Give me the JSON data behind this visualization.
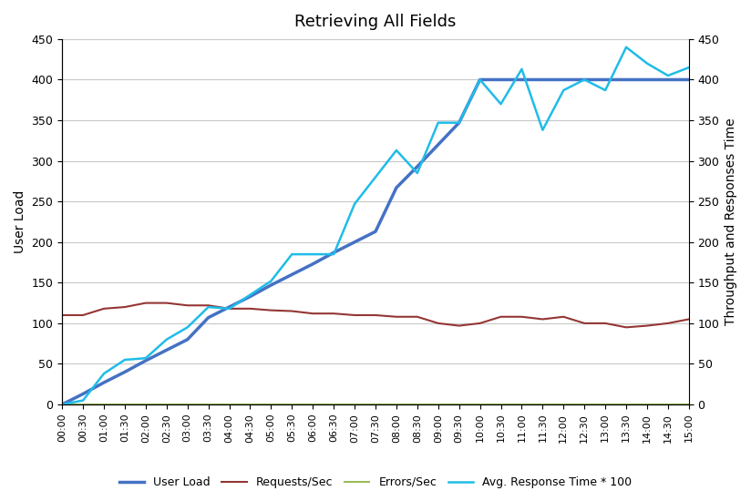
{
  "title": "Retrieving All Fields",
  "ylabel_left": "User Load",
  "ylabel_right": "Throughput and Responses Time",
  "ylim": [
    0,
    450
  ],
  "yticks": [
    0,
    50,
    100,
    150,
    200,
    250,
    300,
    350,
    400,
    450
  ],
  "x_labels": [
    "00:00",
    "00:30",
    "01:00",
    "01:30",
    "02:00",
    "02:30",
    "03:00",
    "03:30",
    "04:00",
    "04:30",
    "05:00",
    "05:30",
    "06:00",
    "06:30",
    "07:00",
    "07:30",
    "08:00",
    "08:30",
    "09:00",
    "09:30",
    "10:00",
    "10:30",
    "11:00",
    "11:30",
    "12:00",
    "12:30",
    "13:00",
    "13:30",
    "14:00",
    "14:30",
    "15:00"
  ],
  "user_load": [
    0,
    13,
    27,
    40,
    54,
    67,
    80,
    107,
    120,
    133,
    147,
    160,
    173,
    187,
    200,
    213,
    267,
    293,
    320,
    347,
    400,
    400,
    400,
    400,
    400,
    400,
    400,
    400,
    400,
    400,
    400
  ],
  "requests_per_sec": [
    110,
    110,
    118,
    120,
    125,
    125,
    122,
    122,
    118,
    118,
    116,
    115,
    112,
    112,
    110,
    110,
    108,
    108,
    100,
    97,
    100,
    108,
    108,
    105,
    108,
    100,
    100,
    95,
    97,
    100,
    105
  ],
  "errors_per_sec": [
    0,
    0,
    0,
    0,
    0,
    0,
    0,
    0,
    0,
    0,
    0,
    0,
    0,
    0,
    0,
    0,
    0,
    0,
    0,
    0,
    0,
    0,
    0,
    0,
    0,
    0,
    0,
    0,
    0,
    0,
    0
  ],
  "avg_response_time": [
    0,
    5,
    38,
    55,
    57,
    80,
    95,
    120,
    118,
    135,
    152,
    185,
    185,
    185,
    247,
    280,
    313,
    285,
    347,
    347,
    400,
    370,
    413,
    338,
    387,
    400,
    387,
    440,
    420,
    405,
    415
  ],
  "colors": {
    "user_load": "#4472C4",
    "requests_per_sec": "#943634",
    "errors_per_sec": "#9BBB59",
    "avg_response_time": "#1FBCE8"
  },
  "legend_labels": [
    "User Load",
    "Requests/Sec",
    "Errors/Sec",
    "Avg. Response Time * 100"
  ],
  "background_color": "#FFFFFF",
  "grid_color": "#C8C8C8"
}
